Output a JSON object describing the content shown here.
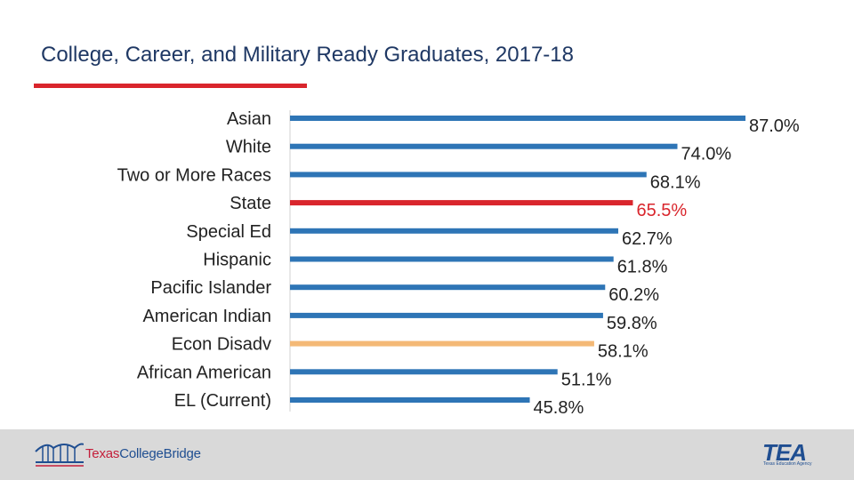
{
  "title": "College, Career, and Military Ready Graduates, 2017-18",
  "colors": {
    "title": "#1f3864",
    "title_rule": "#d9252c",
    "bar_default": "#2e75b6",
    "bar_state": "#d9252c",
    "bar_econ": "#f4b976",
    "label": "#222222",
    "value_state": "#d9252c"
  },
  "chart_data": {
    "type": "bar",
    "orientation": "horizontal",
    "categories": [
      "Asian",
      "White",
      "Two or More Races",
      "State",
      "Special Ed",
      "Hispanic",
      "Pacific Islander",
      "American Indian",
      "Econ Disadv",
      "African American",
      "EL (Current)"
    ],
    "values": [
      87.0,
      74.0,
      68.1,
      65.5,
      62.7,
      61.8,
      60.2,
      59.8,
      58.1,
      51.1,
      45.8
    ],
    "value_labels": [
      "87.0%",
      "74.0%",
      "68.1%",
      "65.5%",
      "62.7%",
      "61.8%",
      "60.2%",
      "59.8%",
      "58.1%",
      "51.1%",
      "45.8%"
    ],
    "bar_colors": [
      "#2e75b6",
      "#2e75b6",
      "#2e75b6",
      "#d9252c",
      "#2e75b6",
      "#2e75b6",
      "#2e75b6",
      "#2e75b6",
      "#f4b976",
      "#2e75b6",
      "#2e75b6"
    ],
    "xlabel": "",
    "ylabel": "",
    "xlim": [
      0,
      87
    ],
    "grid": false,
    "legend": false
  },
  "footer": {
    "left_logo_part1": "Texas",
    "left_logo_part2": "CollegeBridge",
    "right_logo": "TEA",
    "right_logo_sub": "Texas Education Agency",
    "background": "#d9d9d9"
  }
}
